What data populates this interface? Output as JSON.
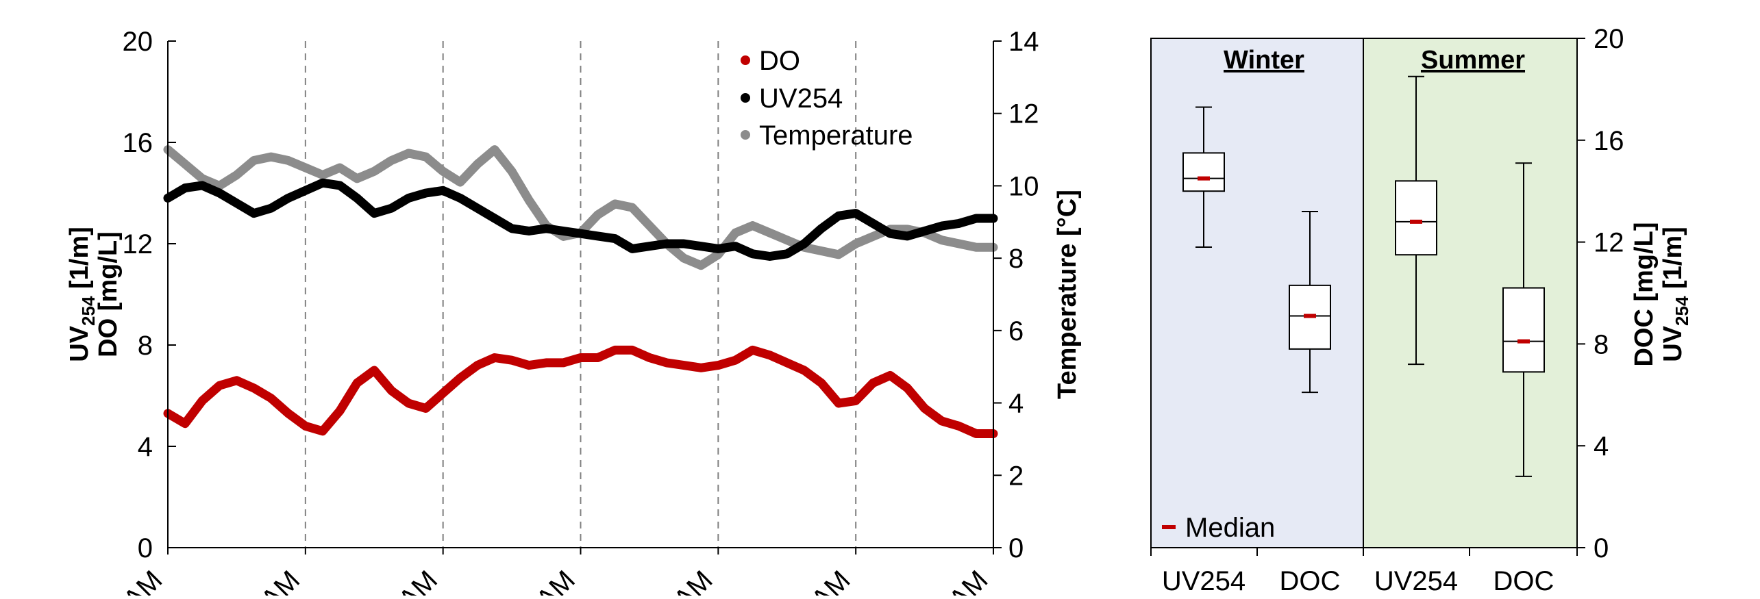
{
  "chart_data": [
    {
      "type": "line",
      "title": "",
      "x_tick_labels": [
        "AM",
        "AM",
        "AM",
        "AM",
        "AM",
        "AM",
        "AM"
      ],
      "x": [
        0,
        1,
        2,
        3,
        4,
        5,
        6,
        7,
        8,
        9,
        10,
        11,
        12,
        13,
        14,
        15,
        16,
        17,
        18,
        19,
        20,
        21,
        22,
        23,
        24,
        25,
        26,
        27,
        28,
        29,
        30,
        31,
        32,
        33,
        34,
        35,
        36,
        37,
        38,
        39,
        40,
        41,
        42,
        43,
        44,
        45,
        46,
        47,
        48
      ],
      "xlim": [
        0,
        48
      ],
      "vertical_dashed_lines_at": [
        8,
        16,
        24,
        32,
        40
      ],
      "ylabel_left": {
        "line1_base": "UV",
        "line1_sub": "254",
        "line1_tail": " [1/m]",
        "line2": "DO [mg/L]"
      },
      "ylabel_right": "Temperature [°C]",
      "ylim_left": [
        0,
        20
      ],
      "ylim_right": [
        0,
        14
      ],
      "yticks_left": [
        "0",
        "4",
        "8",
        "12",
        "16",
        "20"
      ],
      "yticks_right": [
        "0",
        "2",
        "4",
        "6",
        "8",
        "10",
        "12",
        "14"
      ],
      "legend_position": "top-right",
      "series": [
        {
          "name": "DO",
          "axis": "left",
          "color": "#c00000",
          "values": [
            5.3,
            4.9,
            5.8,
            6.4,
            6.6,
            6.3,
            5.9,
            5.3,
            4.8,
            4.6,
            5.4,
            6.5,
            7.0,
            6.2,
            5.7,
            5.5,
            6.1,
            6.7,
            7.2,
            7.5,
            7.4,
            7.2,
            7.3,
            7.3,
            7.5,
            7.5,
            7.8,
            7.8,
            7.5,
            7.3,
            7.2,
            7.1,
            7.2,
            7.4,
            7.8,
            7.6,
            7.3,
            7.0,
            6.5,
            5.7,
            5.8,
            6.5,
            6.8,
            6.3,
            5.5,
            5.0,
            4.8,
            4.5,
            4.5
          ]
        },
        {
          "name": "UV254",
          "axis": "left",
          "color": "#000000",
          "values": [
            13.8,
            14.2,
            14.3,
            14.0,
            13.6,
            13.2,
            13.4,
            13.8,
            14.1,
            14.4,
            14.3,
            13.8,
            13.2,
            13.4,
            13.8,
            14.0,
            14.1,
            13.8,
            13.4,
            13.0,
            12.6,
            12.5,
            12.6,
            12.5,
            12.4,
            12.3,
            12.2,
            11.8,
            11.9,
            12.0,
            12.0,
            11.9,
            11.8,
            11.9,
            11.6,
            11.5,
            11.6,
            12.0,
            12.6,
            13.1,
            13.2,
            12.8,
            12.4,
            12.3,
            12.5,
            12.7,
            12.8,
            13.0,
            13.0
          ]
        },
        {
          "name": "Temperature",
          "axis": "right",
          "color": "#8c8c8c",
          "values": [
            11.0,
            10.6,
            10.2,
            10.0,
            10.3,
            10.7,
            10.8,
            10.7,
            10.5,
            10.3,
            10.5,
            10.2,
            10.4,
            10.7,
            10.9,
            10.8,
            10.4,
            10.1,
            10.6,
            11.0,
            10.4,
            9.6,
            8.9,
            8.6,
            8.7,
            9.2,
            9.5,
            9.4,
            8.9,
            8.4,
            8.0,
            7.8,
            8.1,
            8.7,
            8.9,
            8.7,
            8.5,
            8.3,
            8.2,
            8.1,
            8.4,
            8.6,
            8.8,
            8.8,
            8.7,
            8.5,
            8.4,
            8.3,
            8.3
          ]
        }
      ]
    },
    {
      "type": "box",
      "title": "",
      "categories": [
        "UV254",
        "DOC",
        "UV254",
        "DOC"
      ],
      "groups": [
        {
          "label": "Winter",
          "color": "#e6eaf5"
        },
        {
          "label": "Summer",
          "color": "#e3f0d9"
        }
      ],
      "ylabel_right": {
        "line1": "DOC [mg/L]",
        "line2_base": "UV",
        "line2_sub": "254",
        "line2_tail": " [1/m]"
      },
      "ylim": [
        0,
        20
      ],
      "yticks": [
        "0",
        "4",
        "8",
        "12",
        "16",
        "20"
      ],
      "legend": {
        "label": "Median",
        "color": "#c00000",
        "position": "bottom-left"
      },
      "boxes": [
        {
          "group": "Winter",
          "category": "UV254",
          "min": 11.8,
          "q1": 14.0,
          "median": 14.5,
          "q3": 15.5,
          "max": 17.3
        },
        {
          "group": "Winter",
          "category": "DOC",
          "min": 6.1,
          "q1": 7.8,
          "median": 9.1,
          "q3": 10.3,
          "max": 13.2
        },
        {
          "group": "Summer",
          "category": "UV254",
          "min": 7.2,
          "q1": 11.5,
          "median": 12.8,
          "q3": 14.4,
          "max": 18.5
        },
        {
          "group": "Summer",
          "category": "DOC",
          "min": 2.8,
          "q1": 6.9,
          "median": 8.1,
          "q3": 10.2,
          "max": 15.1
        }
      ]
    }
  ]
}
